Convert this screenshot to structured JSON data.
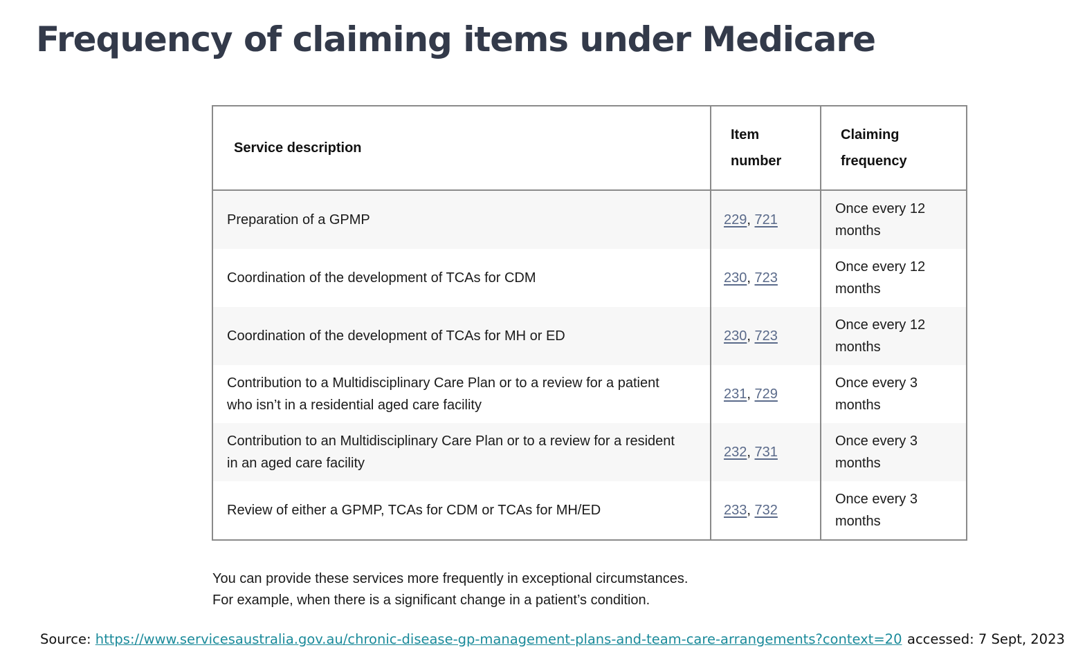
{
  "title": "Frequency of claiming items under Medicare",
  "table": {
    "headers": {
      "service": "Service description",
      "item_line1": "Item",
      "item_line2": "number",
      "freq_line1": "Claiming",
      "freq_line2": "frequency"
    },
    "rows": [
      {
        "desc_line1": "Preparation of a GPMP",
        "desc_line2": "",
        "item_a": "229",
        "item_b": "721",
        "freq_line1": "Once every 12",
        "freq_line2": "months"
      },
      {
        "desc_line1": "Coordination of the development of TCAs for CDM",
        "desc_line2": "",
        "item_a": "230",
        "item_b": "723",
        "freq_line1": "Once every 12",
        "freq_line2": "months"
      },
      {
        "desc_line1": "Coordination of the development of TCAs for MH or ED",
        "desc_line2": "",
        "item_a": "230",
        "item_b": "723",
        "freq_line1": "Once every 12",
        "freq_line2": "months"
      },
      {
        "desc_line1": "Contribution to a Multidisciplinary Care Plan or to a review for a patient",
        "desc_line2": "who isn’t in a residential aged care facility",
        "item_a": "231",
        "item_b": "729",
        "freq_line1": "Once every 3",
        "freq_line2": "months"
      },
      {
        "desc_line1": "Contribution to an Multidisciplinary Care Plan or to a review for a resident",
        "desc_line2": "in an aged care facility",
        "item_a": "232",
        "item_b": "731",
        "freq_line1": "Once every 3",
        "freq_line2": "months"
      },
      {
        "desc_line1": "Review of either a GPMP, TCAs for CDM or TCAs for MH/ED",
        "desc_line2": "",
        "item_a": "233",
        "item_b": "732",
        "freq_line1": "Once every 3",
        "freq_line2": "months"
      }
    ],
    "item_separator": ", "
  },
  "note": {
    "line1": "You can provide these services more frequently in exceptional circumstances.",
    "line2": "For example, when there is a significant change in a patient’s condition."
  },
  "source": {
    "label": "Source: ",
    "url": "https://www.servicesaustralia.gov.au/chronic-disease-gp-management-plans-and-team-care-arrangements?context=20",
    "accessed": "accessed: 7 Sept, 2023"
  },
  "colors": {
    "title": "#333a4a",
    "item_link": "#5a6a8a",
    "source_link": "#1a8a9a",
    "row_shade": "#f7f7f7",
    "border": "#8a8a8a"
  }
}
